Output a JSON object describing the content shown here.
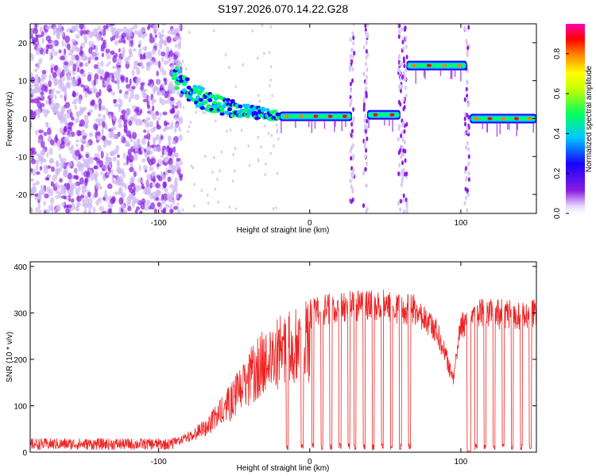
{
  "chart_data": [
    {
      "type": "heatmap",
      "title": "S197.2026.070.14.22.G28",
      "xlabel": "Height of straight line (km)",
      "ylabel": "Frequency (Hz)",
      "xlim": [
        -185,
        150
      ],
      "ylim": [
        -25,
        25
      ],
      "xticks": [
        -100,
        0,
        100
      ],
      "yticks": [
        -20,
        -10,
        0,
        10,
        20
      ],
      "colorbar": {
        "label": "Normalized spectral amplitude",
        "range": [
          0,
          0.95
        ],
        "ticks": [
          0.0,
          0.2,
          0.4,
          0.6,
          0.8
        ],
        "colors": [
          "#d9c8f5",
          "#8a1ee0",
          "#1a00ff",
          "#00c8ff",
          "#00ff60",
          "#ffff00",
          "#ff8000",
          "#ff0000",
          "#ff00b4"
        ]
      },
      "features": {
        "noise_region_x": [
          -185,
          -85
        ],
        "descending_ridge": {
          "x": [
            -90,
            -80,
            -70,
            -60,
            -50,
            -40,
            -30,
            -20
          ],
          "freq": [
            12,
            7,
            5,
            3.5,
            2.5,
            1.8,
            1.2,
            0.8
          ]
        },
        "flat_segments": [
          {
            "x": [
              -20,
              28
            ],
            "freq": 0.6
          },
          {
            "x": [
              38,
              60
            ],
            "freq": 1.0
          },
          {
            "x": [
              64,
              104
            ],
            "freq": 14
          },
          {
            "x": [
              106,
              150
            ],
            "freq": 0
          }
        ],
        "vertical_gaps_x": [
          28,
          37,
          60,
          63,
          104
        ]
      }
    },
    {
      "type": "line",
      "title": "",
      "xlabel": "Height of straight line (km)",
      "ylabel": "SNR (10 * v/v)",
      "xlim": [
        -185,
        150
      ],
      "ylim": [
        0,
        410
      ],
      "xticks": [
        -100,
        0,
        100
      ],
      "yticks": [
        0,
        100,
        200,
        300,
        400
      ],
      "series": [
        {
          "name": "SNR",
          "color": "#ee2222",
          "envelope_x": [
            -185,
            -100,
            -85,
            -70,
            -60,
            -50,
            -40,
            -30,
            -20,
            -10,
            0,
            10,
            20,
            30,
            40,
            50,
            60,
            70,
            80,
            85,
            90,
            95,
            100,
            105,
            110,
            120,
            130,
            140,
            150
          ],
          "envelope_y": [
            25,
            25,
            35,
            70,
            110,
            160,
            220,
            270,
            300,
            320,
            330,
            340,
            345,
            350,
            350,
            350,
            345,
            340,
            310,
            280,
            230,
            170,
            310,
            300,
            330,
            330,
            330,
            330,
            330
          ],
          "dropout_x": [
            -15,
            -5,
            2,
            8,
            14,
            20,
            26,
            30,
            36,
            42,
            48,
            54,
            60,
            66,
            110,
            116,
            122,
            128,
            134,
            140,
            146
          ]
        }
      ]
    }
  ]
}
